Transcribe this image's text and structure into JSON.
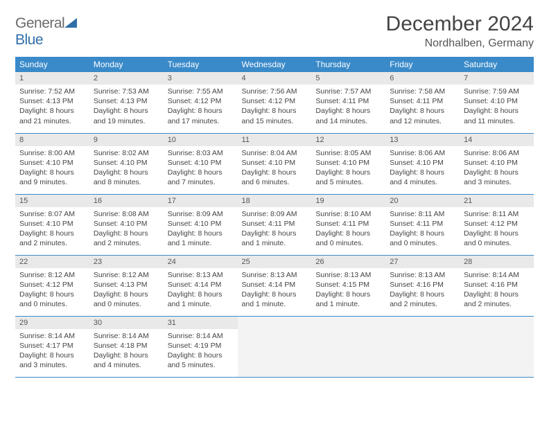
{
  "logo": {
    "text1": "General",
    "text2": "Blue"
  },
  "title": "December 2024",
  "location": "Nordhalben, Germany",
  "colors": {
    "header_bg": "#3a8ac9",
    "header_fg": "#ffffff",
    "daynum_bg": "#e9e9e9",
    "border": "#3a8ac9",
    "text": "#444444"
  },
  "weekdays": [
    "Sunday",
    "Monday",
    "Tuesday",
    "Wednesday",
    "Thursday",
    "Friday",
    "Saturday"
  ],
  "weeks": [
    [
      {
        "n": "1",
        "sunrise": "Sunrise: 7:52 AM",
        "sunset": "Sunset: 4:13 PM",
        "day": "Daylight: 8 hours and 21 minutes."
      },
      {
        "n": "2",
        "sunrise": "Sunrise: 7:53 AM",
        "sunset": "Sunset: 4:13 PM",
        "day": "Daylight: 8 hours and 19 minutes."
      },
      {
        "n": "3",
        "sunrise": "Sunrise: 7:55 AM",
        "sunset": "Sunset: 4:12 PM",
        "day": "Daylight: 8 hours and 17 minutes."
      },
      {
        "n": "4",
        "sunrise": "Sunrise: 7:56 AM",
        "sunset": "Sunset: 4:12 PM",
        "day": "Daylight: 8 hours and 15 minutes."
      },
      {
        "n": "5",
        "sunrise": "Sunrise: 7:57 AM",
        "sunset": "Sunset: 4:11 PM",
        "day": "Daylight: 8 hours and 14 minutes."
      },
      {
        "n": "6",
        "sunrise": "Sunrise: 7:58 AM",
        "sunset": "Sunset: 4:11 PM",
        "day": "Daylight: 8 hours and 12 minutes."
      },
      {
        "n": "7",
        "sunrise": "Sunrise: 7:59 AM",
        "sunset": "Sunset: 4:10 PM",
        "day": "Daylight: 8 hours and 11 minutes."
      }
    ],
    [
      {
        "n": "8",
        "sunrise": "Sunrise: 8:00 AM",
        "sunset": "Sunset: 4:10 PM",
        "day": "Daylight: 8 hours and 9 minutes."
      },
      {
        "n": "9",
        "sunrise": "Sunrise: 8:02 AM",
        "sunset": "Sunset: 4:10 PM",
        "day": "Daylight: 8 hours and 8 minutes."
      },
      {
        "n": "10",
        "sunrise": "Sunrise: 8:03 AM",
        "sunset": "Sunset: 4:10 PM",
        "day": "Daylight: 8 hours and 7 minutes."
      },
      {
        "n": "11",
        "sunrise": "Sunrise: 8:04 AM",
        "sunset": "Sunset: 4:10 PM",
        "day": "Daylight: 8 hours and 6 minutes."
      },
      {
        "n": "12",
        "sunrise": "Sunrise: 8:05 AM",
        "sunset": "Sunset: 4:10 PM",
        "day": "Daylight: 8 hours and 5 minutes."
      },
      {
        "n": "13",
        "sunrise": "Sunrise: 8:06 AM",
        "sunset": "Sunset: 4:10 PM",
        "day": "Daylight: 8 hours and 4 minutes."
      },
      {
        "n": "14",
        "sunrise": "Sunrise: 8:06 AM",
        "sunset": "Sunset: 4:10 PM",
        "day": "Daylight: 8 hours and 3 minutes."
      }
    ],
    [
      {
        "n": "15",
        "sunrise": "Sunrise: 8:07 AM",
        "sunset": "Sunset: 4:10 PM",
        "day": "Daylight: 8 hours and 2 minutes."
      },
      {
        "n": "16",
        "sunrise": "Sunrise: 8:08 AM",
        "sunset": "Sunset: 4:10 PM",
        "day": "Daylight: 8 hours and 2 minutes."
      },
      {
        "n": "17",
        "sunrise": "Sunrise: 8:09 AM",
        "sunset": "Sunset: 4:10 PM",
        "day": "Daylight: 8 hours and 1 minute."
      },
      {
        "n": "18",
        "sunrise": "Sunrise: 8:09 AM",
        "sunset": "Sunset: 4:11 PM",
        "day": "Daylight: 8 hours and 1 minute."
      },
      {
        "n": "19",
        "sunrise": "Sunrise: 8:10 AM",
        "sunset": "Sunset: 4:11 PM",
        "day": "Daylight: 8 hours and 0 minutes."
      },
      {
        "n": "20",
        "sunrise": "Sunrise: 8:11 AM",
        "sunset": "Sunset: 4:11 PM",
        "day": "Daylight: 8 hours and 0 minutes."
      },
      {
        "n": "21",
        "sunrise": "Sunrise: 8:11 AM",
        "sunset": "Sunset: 4:12 PM",
        "day": "Daylight: 8 hours and 0 minutes."
      }
    ],
    [
      {
        "n": "22",
        "sunrise": "Sunrise: 8:12 AM",
        "sunset": "Sunset: 4:12 PM",
        "day": "Daylight: 8 hours and 0 minutes."
      },
      {
        "n": "23",
        "sunrise": "Sunrise: 8:12 AM",
        "sunset": "Sunset: 4:13 PM",
        "day": "Daylight: 8 hours and 0 minutes."
      },
      {
        "n": "24",
        "sunrise": "Sunrise: 8:13 AM",
        "sunset": "Sunset: 4:14 PM",
        "day": "Daylight: 8 hours and 1 minute."
      },
      {
        "n": "25",
        "sunrise": "Sunrise: 8:13 AM",
        "sunset": "Sunset: 4:14 PM",
        "day": "Daylight: 8 hours and 1 minute."
      },
      {
        "n": "26",
        "sunrise": "Sunrise: 8:13 AM",
        "sunset": "Sunset: 4:15 PM",
        "day": "Daylight: 8 hours and 1 minute."
      },
      {
        "n": "27",
        "sunrise": "Sunrise: 8:13 AM",
        "sunset": "Sunset: 4:16 PM",
        "day": "Daylight: 8 hours and 2 minutes."
      },
      {
        "n": "28",
        "sunrise": "Sunrise: 8:14 AM",
        "sunset": "Sunset: 4:16 PM",
        "day": "Daylight: 8 hours and 2 minutes."
      }
    ],
    [
      {
        "n": "29",
        "sunrise": "Sunrise: 8:14 AM",
        "sunset": "Sunset: 4:17 PM",
        "day": "Daylight: 8 hours and 3 minutes."
      },
      {
        "n": "30",
        "sunrise": "Sunrise: 8:14 AM",
        "sunset": "Sunset: 4:18 PM",
        "day": "Daylight: 8 hours and 4 minutes."
      },
      {
        "n": "31",
        "sunrise": "Sunrise: 8:14 AM",
        "sunset": "Sunset: 4:19 PM",
        "day": "Daylight: 8 hours and 5 minutes."
      },
      {
        "empty": true
      },
      {
        "empty": true
      },
      {
        "empty": true
      },
      {
        "empty": true
      }
    ]
  ]
}
